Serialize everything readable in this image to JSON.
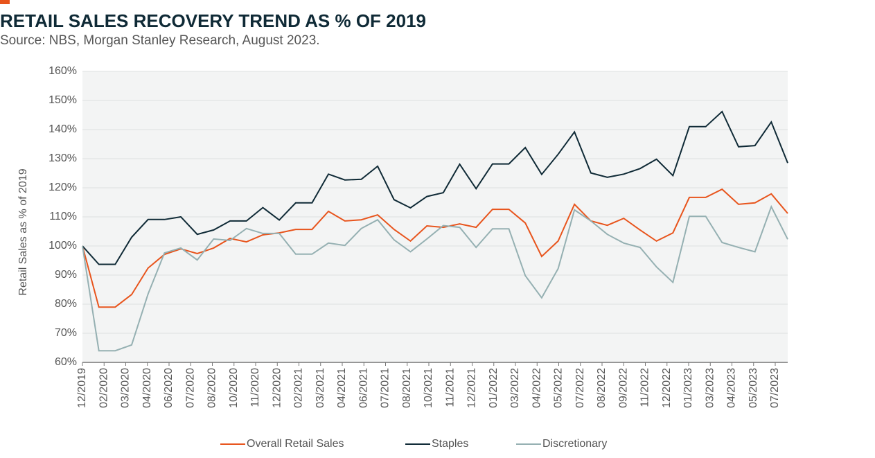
{
  "chart_data": {
    "type": "line",
    "title": "RETAIL SALES RECOVERY TREND AS % OF 2019",
    "subtitle": "Source: NBS, Morgan Stanley Research, August 2023.",
    "y_label": "Retail Sales as % of 2019",
    "x": [
      0,
      1,
      2,
      3,
      4,
      5,
      6,
      7,
      8,
      9,
      10,
      11,
      12,
      13,
      14,
      15,
      16,
      17,
      18,
      19,
      20,
      21,
      22,
      23,
      24,
      25,
      26,
      27,
      28,
      29,
      30,
      31,
      32,
      33,
      34,
      35,
      36,
      37,
      38,
      39,
      40,
      41,
      42,
      43
    ],
    "xlim": [
      0,
      43
    ],
    "xticks": [
      {
        "value": 0,
        "label": "12/2019"
      },
      {
        "value": 1.32,
        "label": "02/2020"
      },
      {
        "value": 2.64,
        "label": "03/2020"
      },
      {
        "value": 3.96,
        "label": "04/2020"
      },
      {
        "value": 5.28,
        "label": "06/2020"
      },
      {
        "value": 6.6,
        "label": "07/2020"
      },
      {
        "value": 7.92,
        "label": "08/2020"
      },
      {
        "value": 9.24,
        "label": "10/2020"
      },
      {
        "value": 10.56,
        "label": "11/2020"
      },
      {
        "value": 11.88,
        "label": "12/2020"
      },
      {
        "value": 13.2,
        "label": "02/2021"
      },
      {
        "value": 14.52,
        "label": "03/2021"
      },
      {
        "value": 15.84,
        "label": "04/2021"
      },
      {
        "value": 17.16,
        "label": "06/2021"
      },
      {
        "value": 18.48,
        "label": "07/2021"
      },
      {
        "value": 19.8,
        "label": "08/2021"
      },
      {
        "value": 21.12,
        "label": "10/2021"
      },
      {
        "value": 22.44,
        "label": "11/2021"
      },
      {
        "value": 23.76,
        "label": "12/2021"
      },
      {
        "value": 25.08,
        "label": "01/2022"
      },
      {
        "value": 26.4,
        "label": "03/2022"
      },
      {
        "value": 27.72,
        "label": "04/2022"
      },
      {
        "value": 29.04,
        "label": "05/2022"
      },
      {
        "value": 30.36,
        "label": "07/2022"
      },
      {
        "value": 31.68,
        "label": "08/2022"
      },
      {
        "value": 33,
        "label": "09/2022"
      },
      {
        "value": 34.32,
        "label": "11/2022"
      },
      {
        "value": 35.64,
        "label": "12/2022"
      },
      {
        "value": 36.96,
        "label": "01/2023"
      },
      {
        "value": 38.28,
        "label": "03/2023"
      },
      {
        "value": 39.6,
        "label": "04/2023"
      },
      {
        "value": 40.92,
        "label": "05/2023"
      },
      {
        "value": 42.24,
        "label": "07/2023"
      }
    ],
    "ylim": [
      60,
      160
    ],
    "yticks": [
      {
        "value": 60,
        "label": "60%"
      },
      {
        "value": 70,
        "label": "70%"
      },
      {
        "value": 80,
        "label": "80%"
      },
      {
        "value": 90,
        "label": "90%"
      },
      {
        "value": 100,
        "label": "100%"
      },
      {
        "value": 110,
        "label": "110%"
      },
      {
        "value": 120,
        "label": "120%"
      },
      {
        "value": 130,
        "label": "130%"
      },
      {
        "value": 140,
        "label": "140%"
      },
      {
        "value": 150,
        "label": "150%"
      },
      {
        "value": 160,
        "label": "160%"
      }
    ],
    "grid": true,
    "legend": "bottom",
    "series": [
      {
        "name": "Overall Retail Sales",
        "color": "#e8541c",
        "values": [
          100,
          79,
          79,
          83.3,
          92.4,
          97.1,
          99,
          97.4,
          99.3,
          102.6,
          101.4,
          103.8,
          104.5,
          105.7,
          105.7,
          111.9,
          108.6,
          109,
          110.7,
          105.7,
          101.7,
          106.9,
          106.4,
          107.6,
          106.4,
          112.6,
          112.6,
          107.9,
          96.4,
          101.7,
          114.3,
          108.6,
          107.1,
          109.5,
          105.5,
          101.7,
          104.5,
          116.7,
          116.7,
          119.5,
          114.3,
          114.8,
          117.9,
          111.2
        ]
      },
      {
        "name": "Staples",
        "color": "#0f2a36",
        "values": [
          100,
          93.7,
          93.7,
          103,
          109.1,
          109.1,
          110,
          104,
          105.5,
          108.6,
          108.6,
          113.2,
          108.9,
          114.8,
          114.8,
          124.7,
          122.7,
          122.9,
          127.4,
          115.9,
          113.1,
          117,
          118.3,
          128.1,
          119.7,
          128.2,
          128.2,
          133.8,
          124.6,
          131.5,
          139.2,
          125.1,
          123.6,
          124.7,
          126.6,
          129.8,
          124.2,
          141,
          141,
          146.2,
          134.1,
          134.5,
          142.6,
          128.5
        ]
      },
      {
        "name": "Discretionary",
        "color": "#95b0b2",
        "values": [
          100,
          64,
          64,
          66,
          83.5,
          97.6,
          99.3,
          95.2,
          102.4,
          101.9,
          106,
          104.3,
          104.3,
          97.2,
          97.2,
          101,
          100.2,
          106,
          109,
          102.1,
          98,
          102.4,
          107,
          106.4,
          99.5,
          105.9,
          105.9,
          89.8,
          82.2,
          92.2,
          112.4,
          108.6,
          104,
          101,
          99.5,
          92.8,
          87.5,
          110.2,
          110.2,
          101.2,
          99.5,
          98,
          113.5,
          102.3
        ]
      }
    ]
  }
}
